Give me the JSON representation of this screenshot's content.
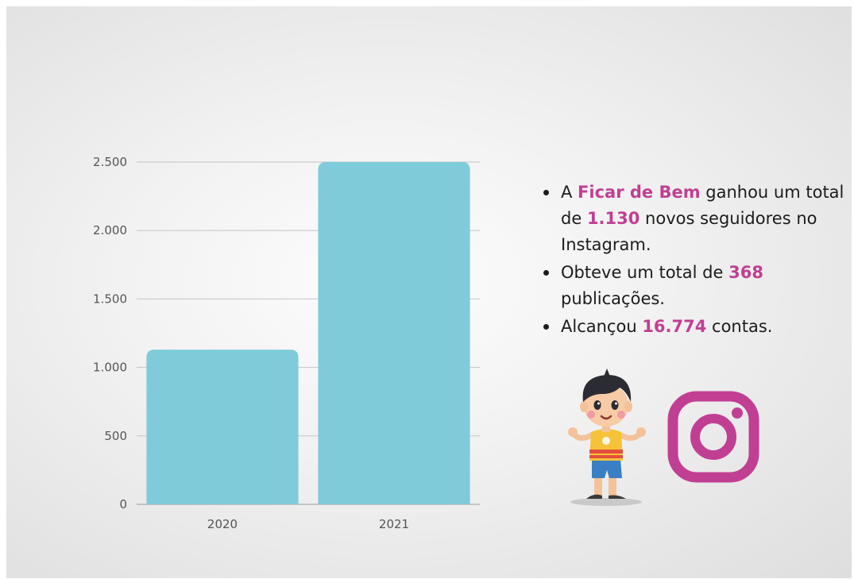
{
  "chart_data": {
    "type": "bar",
    "categories": [
      "2020",
      "2021"
    ],
    "values": [
      1130,
      2500
    ],
    "ylim": [
      0,
      2500
    ],
    "yticks": [
      0,
      500,
      1000,
      1500,
      2000,
      2500
    ],
    "ytick_labels": [
      "0",
      "500",
      "1.000",
      "1.500",
      "2.000",
      "2.500"
    ],
    "grid": true,
    "bar_color": "#7fcbd9"
  },
  "bullets": [
    {
      "parts": [
        "A ",
        "Ficar de Bem",
        " ganhou um total de ",
        "1.130",
        " novos seguidores no Instagram."
      ]
    },
    {
      "parts": [
        "Obteve um total de ",
        "368",
        " publicações."
      ]
    },
    {
      "parts": [
        "Alcançou ",
        "16.774",
        " contas."
      ]
    }
  ],
  "icons": {
    "character": "boy-illustration",
    "logo": "instagram-icon"
  },
  "colors": {
    "highlight": "#c13f93",
    "instagram": "#c13f93"
  }
}
